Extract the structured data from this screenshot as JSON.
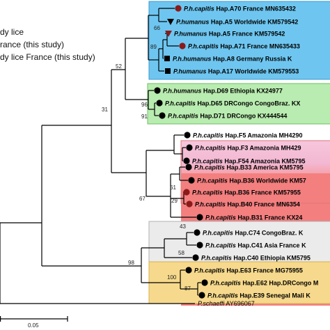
{
  "legend": [
    "dy lice",
    "rance (this study)",
    "dy lice France (this study)"
  ],
  "colors": {
    "clade_A": "#6ec6f0",
    "clade_D": "#b9ecb0",
    "clade_F": "#f6c6dd",
    "clade_B": "#f47f7f",
    "clade_C": "#e9e9e9",
    "clade_E": "#f6d98c",
    "marker_dark": "#000000",
    "marker_red": "#8b1a1a"
  },
  "tips": [
    {
      "species": "P.h.capitis",
      "rest": "Hap.A70 France MN635432",
      "marker": "circle-red"
    },
    {
      "species": "P.humanus",
      "rest": "Hap.A5 Worldwide KM579542",
      "marker": "triangle"
    },
    {
      "species": "P.humanus",
      "rest": "Hap.A5 France KM579542",
      "marker": "triangle-red"
    },
    {
      "species": "P.h.capitis",
      "rest": "Hap.A71 France MN635433",
      "marker": "circle-red"
    },
    {
      "species": "P.h.humanus",
      "rest": "Hap.A8 Germany Russia K",
      "marker": "square"
    },
    {
      "species": "P.humanus",
      "rest": "Hap.A17 Worldwide KM579553",
      "marker": "square"
    },
    {
      "species": "P.h.humanus",
      "rest": "Hap.D69 Ethiopia KX24977",
      "marker": "circle"
    },
    {
      "species": "P.h.capitis",
      "rest": "Hap.D65 DRCongo CongoBraz. KX",
      "marker": "circle"
    },
    {
      "species": "P.h.capitis",
      "rest": "Hap.D71 DRCongo KX444544",
      "marker": "circle"
    },
    {
      "species": "P.h.capitis",
      "rest": "Hap.F5 Amazonia MH4290",
      "marker": "circle"
    },
    {
      "species": "P.h.capitis",
      "rest": "Hap.F3 Amazonia MH429",
      "marker": "circle"
    },
    {
      "species": "P.h.capitis",
      "rest": "Hap.F54 Amazonia KM5795",
      "marker": "circle"
    },
    {
      "species": "P.h.capitis",
      "rest": "Hap.B33 America KM5795",
      "marker": "circle"
    },
    {
      "species": "P.h.capitis",
      "rest": "Hap.B36 Worldwide KM57",
      "marker": "circle"
    },
    {
      "species": "P.h.capitis",
      "rest": "Hap.B36 France KM57955",
      "marker": "circle-red"
    },
    {
      "species": "P.h.capitis",
      "rest": "Hap.B40 France MN6354",
      "marker": "circle-red"
    },
    {
      "species": "P.h.capitis",
      "rest": "Hap.B31 France KX24",
      "marker": "circle"
    },
    {
      "species": "P.h.capitis",
      "rest": "Hap.C74 CongoBraz. K",
      "marker": "circle"
    },
    {
      "species": "P.h.capitis",
      "rest": "Hap.C41 Asia France K",
      "marker": "circle"
    },
    {
      "species": "P.h.capitis",
      "rest": "Hap.C40 Ethiopia KM5795",
      "marker": "circle"
    },
    {
      "species": "P.h.capitis",
      "rest": "Hap.E63 France MG75955",
      "marker": "circle"
    },
    {
      "species": "P.h.capitis",
      "rest": "Hap.E62 Hap.DRCongo M",
      "marker": "circle"
    },
    {
      "species": "P.h.capitis",
      "rest": "Hap.E39 Senegal Mali K",
      "marker": "circle"
    }
  ],
  "outgroup": {
    "species": "P.schaeffi",
    "rest": "AY696067"
  },
  "bootstrap": [
    "66",
    "89",
    "52",
    "96",
    "91",
    "31",
    "67",
    "61",
    "29",
    "43",
    "58",
    "98",
    "100",
    "87"
  ],
  "scale": "0.05"
}
